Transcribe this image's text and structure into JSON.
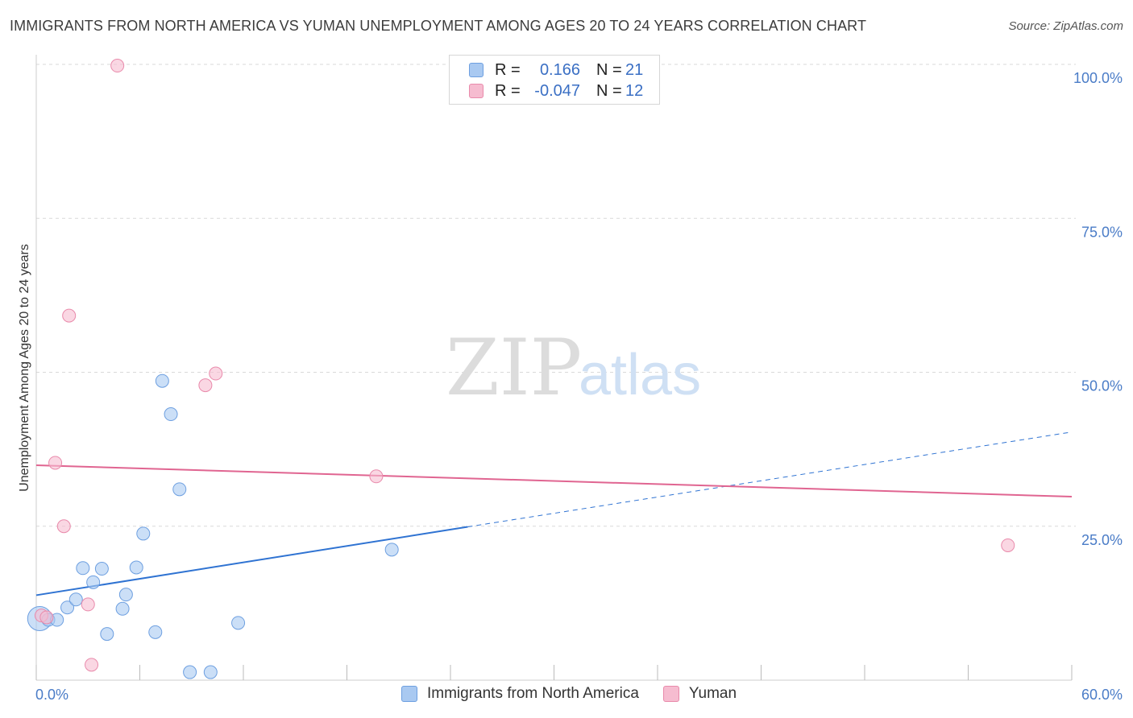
{
  "title": "IMMIGRANTS FROM NORTH AMERICA VS YUMAN UNEMPLOYMENT AMONG AGES 20 TO 24 YEARS CORRELATION CHART",
  "source": "Source: ZipAtlas.com",
  "watermark": {
    "zip": "ZIP",
    "atlas": "atlas"
  },
  "legend": {
    "rows": [
      {
        "r_label": "R =",
        "r_value": "0.166",
        "n_label": "N =",
        "n_value": "21"
      },
      {
        "r_label": "R =",
        "r_value": "-0.047",
        "n_label": "N =",
        "n_value": "12"
      }
    ]
  },
  "colors": {
    "blue_fill": "#a9c9f1",
    "blue_stroke": "#6d9fe0",
    "blue_line": "#2f73d2",
    "pink_fill": "#f6bcd0",
    "pink_stroke": "#e98aab",
    "pink_line": "#e06591",
    "grid": "#d9d9d9",
    "axis_text": "#4a7cc7"
  },
  "chart_data": {
    "type": "scatter",
    "title": "IMMIGRANTS FROM NORTH AMERICA VS YUMAN UNEMPLOYMENT AMONG AGES 20 TO 24 YEARS CORRELATION CHART",
    "xlabel": "",
    "ylabel": "Unemployment Among Ages 20 to 24 years",
    "xlim": [
      0,
      60
    ],
    "ylim": [
      0,
      100
    ],
    "x_tick_labels": [
      "0.0%",
      "60.0%"
    ],
    "y_ticks": [
      25,
      50,
      75,
      100
    ],
    "y_tick_labels": [
      "25.0%",
      "50.0%",
      "75.0%",
      "100.0%"
    ],
    "series": [
      {
        "name": "Immigrants from North America",
        "color": "#a9c9f1",
        "points": [
          {
            "x": 0.2,
            "y": 10.0,
            "big": true
          },
          {
            "x": 0.7,
            "y": 9.8
          },
          {
            "x": 1.2,
            "y": 9.8
          },
          {
            "x": 1.8,
            "y": 11.8
          },
          {
            "x": 2.3,
            "y": 13.1
          },
          {
            "x": 2.7,
            "y": 18.2
          },
          {
            "x": 3.3,
            "y": 15.9
          },
          {
            "x": 3.8,
            "y": 18.1
          },
          {
            "x": 4.1,
            "y": 7.5
          },
          {
            "x": 5.0,
            "y": 11.6
          },
          {
            "x": 5.2,
            "y": 13.9
          },
          {
            "x": 5.8,
            "y": 18.3
          },
          {
            "x": 6.2,
            "y": 23.8
          },
          {
            "x": 6.9,
            "y": 7.8
          },
          {
            "x": 7.3,
            "y": 48.6
          },
          {
            "x": 7.8,
            "y": 43.2
          },
          {
            "x": 8.3,
            "y": 31.0
          },
          {
            "x": 8.9,
            "y": 1.3
          },
          {
            "x": 10.1,
            "y": 1.3
          },
          {
            "x": 11.7,
            "y": 9.3
          },
          {
            "x": 20.6,
            "y": 21.2
          }
        ],
        "trend": {
          "x1": 0,
          "y1": 13.8,
          "x2": 25,
          "y2": 24.9,
          "dash_x2": 60,
          "dash_y2": 40.3
        }
      },
      {
        "name": "Yuman",
        "color": "#f6bcd0",
        "points": [
          {
            "x": 0.3,
            "y": 10.5
          },
          {
            "x": 0.6,
            "y": 10.2
          },
          {
            "x": 1.1,
            "y": 35.3
          },
          {
            "x": 1.6,
            "y": 25.0
          },
          {
            "x": 1.9,
            "y": 59.2
          },
          {
            "x": 3.0,
            "y": 12.3
          },
          {
            "x": 3.2,
            "y": 2.5
          },
          {
            "x": 4.7,
            "y": 99.8
          },
          {
            "x": 9.8,
            "y": 47.9
          },
          {
            "x": 10.4,
            "y": 49.8
          },
          {
            "x": 19.7,
            "y": 33.1
          },
          {
            "x": 56.3,
            "y": 21.9
          }
        ],
        "trend": {
          "x1": 0,
          "y1": 34.9,
          "x2": 60,
          "y2": 29.8
        }
      }
    ]
  }
}
